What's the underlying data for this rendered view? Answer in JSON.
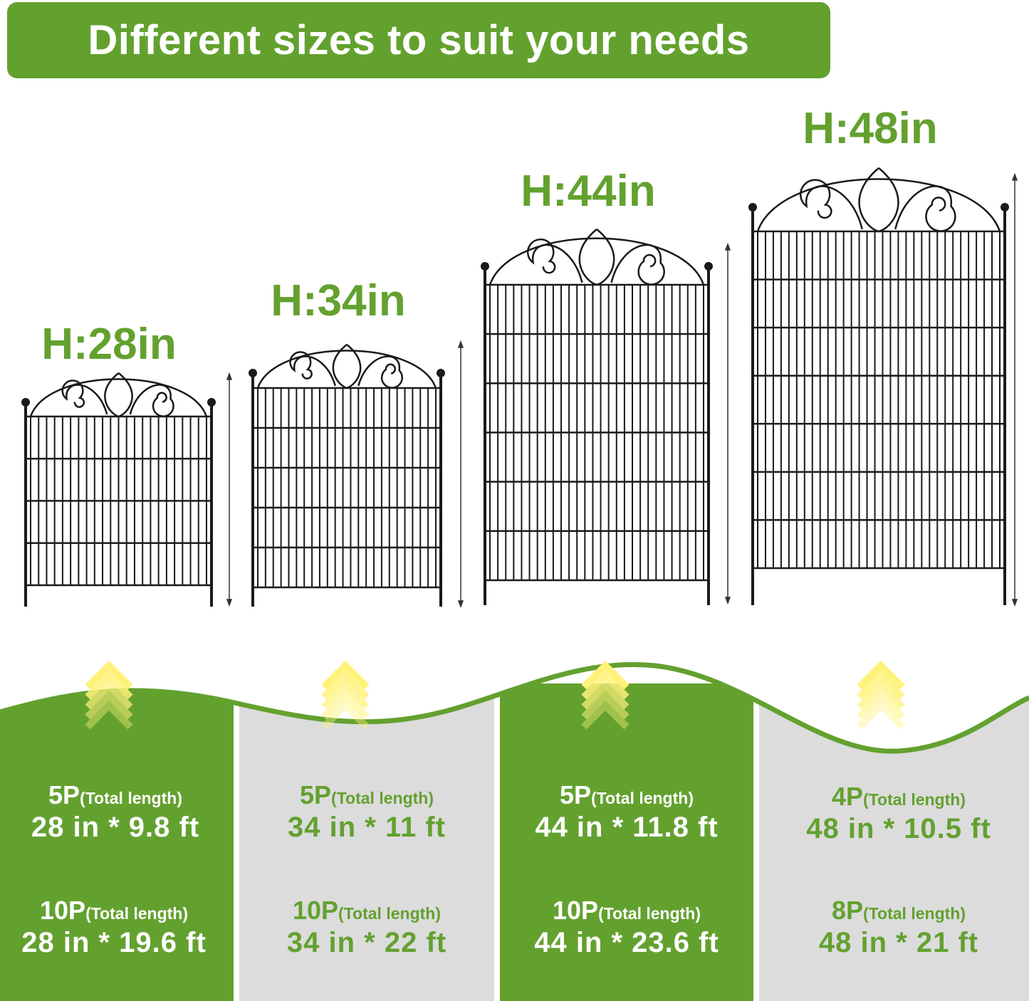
{
  "title": "Different sizes to suit your needs",
  "colors": {
    "green": "#63a12f",
    "gray": "#dcdcdc",
    "fence": "#1a1a1a",
    "arrow": "#fff27a"
  },
  "sizes": [
    {
      "height_label": "H:28in",
      "specs": [
        {
          "qty": "5P",
          "note": "(Total length)",
          "dim": "28 in * 9.8 ft"
        },
        {
          "qty": "10P",
          "note": "(Total length)",
          "dim": "28 in * 19.6 ft"
        }
      ]
    },
    {
      "height_label": "H:34in",
      "specs": [
        {
          "qty": "5P",
          "note": "(Total length)",
          "dim": "34 in * 11 ft"
        },
        {
          "qty": "10P",
          "note": "(Total length)",
          "dim": "34 in * 22 ft"
        }
      ]
    },
    {
      "height_label": "H:44in",
      "specs": [
        {
          "qty": "5P",
          "note": "(Total length)",
          "dim": "44 in * 11.8 ft"
        },
        {
          "qty": "10P",
          "note": "(Total length)",
          "dim": "44 in * 23.6 ft"
        }
      ]
    },
    {
      "height_label": "H:48in",
      "specs": [
        {
          "qty": "4P",
          "note": "(Total length)",
          "dim": "48 in * 10.5 ft"
        },
        {
          "qty": "8P",
          "note": "(Total length)",
          "dim": "48 in * 21 ft"
        }
      ]
    }
  ]
}
